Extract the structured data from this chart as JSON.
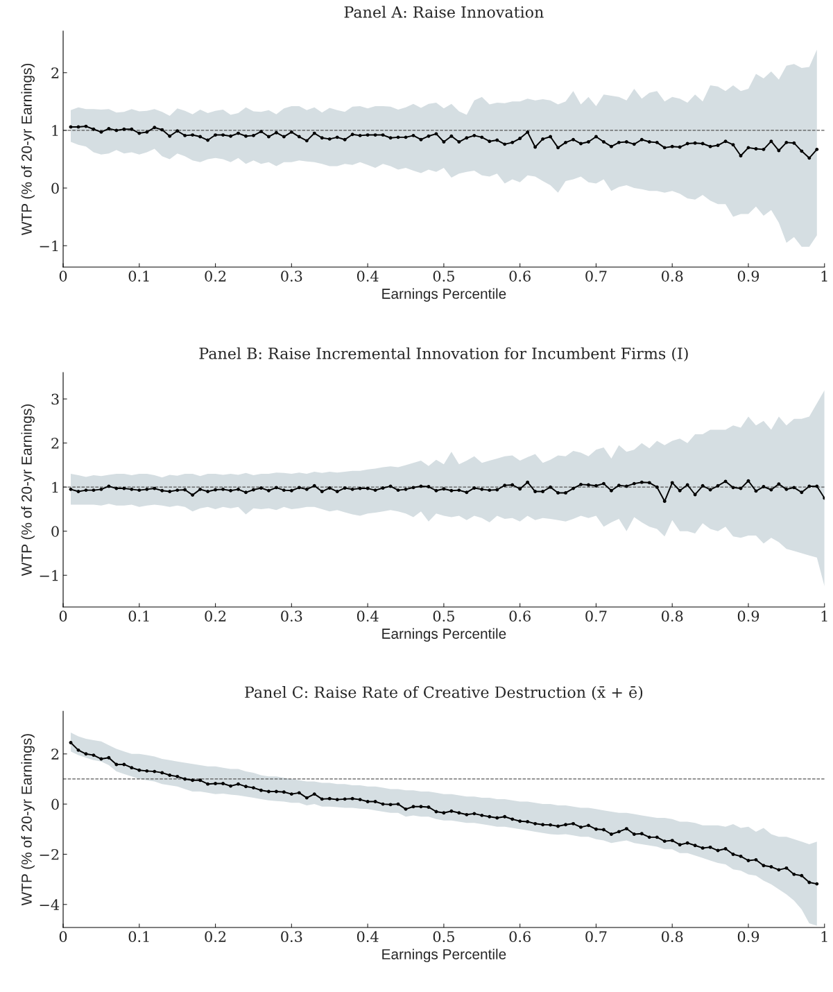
{
  "chart_data": [
    {
      "type": "line",
      "title": "Panel A: Raise Innovation",
      "xlabel": "Earnings Percentile",
      "ylabel": "WTP (% of 20-yr Earnings)",
      "xlim": [
        0,
        1
      ],
      "xticks": [
        0,
        0.1,
        0.2,
        0.3,
        0.4,
        0.5,
        0.6,
        0.7,
        0.8,
        0.9,
        1
      ],
      "ylim": [
        -1.37,
        2.72
      ],
      "yticks": [
        {
          "value": -1,
          "label": "−1"
        },
        0,
        1,
        2
      ],
      "grid": false,
      "marker": "circle",
      "line_style": "solid",
      "ref_lines": [
        {
          "axis": "y",
          "value": 1,
          "color": "#555555",
          "line_style": "dashed"
        }
      ],
      "series": [
        {
          "color": "#000000",
          "x": [
            0.01,
            0.02,
            0.03,
            0.04,
            0.05,
            0.06,
            0.07,
            0.08,
            0.09,
            0.1,
            0.11,
            0.12,
            0.13,
            0.14,
            0.15,
            0.16,
            0.17,
            0.18,
            0.19,
            0.2,
            0.21,
            0.22,
            0.23,
            0.24,
            0.25,
            0.26,
            0.27,
            0.28,
            0.29,
            0.3,
            0.31,
            0.32,
            0.33,
            0.34,
            0.35,
            0.36,
            0.37,
            0.38,
            0.39,
            0.4,
            0.41,
            0.42,
            0.43,
            0.44,
            0.45,
            0.46,
            0.47,
            0.48,
            0.49,
            0.5,
            0.51,
            0.52,
            0.53,
            0.54,
            0.55,
            0.56,
            0.57,
            0.58,
            0.59,
            0.6,
            0.61,
            0.62,
            0.63,
            0.64,
            0.65,
            0.66,
            0.67,
            0.68,
            0.69,
            0.7,
            0.71,
            0.72,
            0.73,
            0.74,
            0.75,
            0.76,
            0.77,
            0.78,
            0.79,
            0.8,
            0.81,
            0.82,
            0.83,
            0.84,
            0.85,
            0.86,
            0.87,
            0.88,
            0.89,
            0.9,
            0.91,
            0.92,
            0.93,
            0.94,
            0.95,
            0.96,
            0.97,
            0.98,
            0.99
          ],
          "values": [
            1.06,
            1.06,
            1.07,
            1.02,
            0.97,
            1.03,
            1.0,
            1.02,
            1.02,
            0.95,
            0.97,
            1.05,
            1.01,
            0.9,
            0.99,
            0.91,
            0.92,
            0.89,
            0.83,
            0.92,
            0.92,
            0.9,
            0.95,
            0.9,
            0.91,
            0.98,
            0.89,
            0.96,
            0.89,
            0.97,
            0.89,
            0.82,
            0.95,
            0.87,
            0.85,
            0.88,
            0.84,
            0.93,
            0.91,
            0.92,
            0.92,
            0.92,
            0.87,
            0.88,
            0.88,
            0.91,
            0.84,
            0.9,
            0.94,
            0.8,
            0.9,
            0.8,
            0.87,
            0.91,
            0.88,
            0.81,
            0.83,
            0.76,
            0.79,
            0.86,
            0.97,
            0.71,
            0.85,
            0.89,
            0.7,
            0.79,
            0.84,
            0.77,
            0.8,
            0.89,
            0.8,
            0.72,
            0.79,
            0.8,
            0.76,
            0.84,
            0.8,
            0.79,
            0.7,
            0.72,
            0.71,
            0.77,
            0.78,
            0.77,
            0.72,
            0.74,
            0.81,
            0.75,
            0.56,
            0.7,
            0.68,
            0.67,
            0.81,
            0.65,
            0.79,
            0.78,
            0.64,
            0.52,
            0.67
          ],
          "upper": [
            1.35,
            1.4,
            1.37,
            1.37,
            1.36,
            1.37,
            1.31,
            1.32,
            1.37,
            1.33,
            1.34,
            1.37,
            1.32,
            1.25,
            1.38,
            1.34,
            1.28,
            1.36,
            1.3,
            1.34,
            1.36,
            1.27,
            1.3,
            1.4,
            1.33,
            1.32,
            1.35,
            1.28,
            1.38,
            1.42,
            1.42,
            1.35,
            1.4,
            1.31,
            1.39,
            1.35,
            1.32,
            1.41,
            1.42,
            1.38,
            1.42,
            1.42,
            1.41,
            1.36,
            1.4,
            1.46,
            1.39,
            1.46,
            1.48,
            1.38,
            1.46,
            1.33,
            1.27,
            1.52,
            1.58,
            1.45,
            1.48,
            1.47,
            1.5,
            1.5,
            1.55,
            1.52,
            1.54,
            1.52,
            1.45,
            1.5,
            1.68,
            1.45,
            1.58,
            1.42,
            1.62,
            1.6,
            1.58,
            1.52,
            1.72,
            1.55,
            1.65,
            1.68,
            1.5,
            1.58,
            1.55,
            1.48,
            1.62,
            1.5,
            1.78,
            1.76,
            1.68,
            1.78,
            1.68,
            1.72,
            1.98,
            1.9,
            2.02,
            1.88,
            2.12,
            2.15,
            2.08,
            2.1,
            2.4
          ],
          "lower": [
            0.8,
            0.75,
            0.72,
            0.62,
            0.58,
            0.6,
            0.66,
            0.6,
            0.62,
            0.58,
            0.62,
            0.68,
            0.55,
            0.5,
            0.6,
            0.55,
            0.48,
            0.45,
            0.5,
            0.52,
            0.5,
            0.45,
            0.52,
            0.42,
            0.48,
            0.42,
            0.45,
            0.38,
            0.45,
            0.45,
            0.48,
            0.46,
            0.45,
            0.42,
            0.38,
            0.38,
            0.42,
            0.4,
            0.45,
            0.4,
            0.35,
            0.42,
            0.38,
            0.32,
            0.35,
            0.3,
            0.26,
            0.32,
            0.28,
            0.35,
            0.18,
            0.25,
            0.28,
            0.3,
            0.22,
            0.2,
            0.25,
            0.08,
            0.15,
            0.1,
            0.22,
            0.2,
            0.12,
            0.05,
            -0.08,
            0.12,
            0.15,
            0.2,
            0.1,
            0.08,
            0.15,
            -0.05,
            0.02,
            0.05,
            0.0,
            -0.02,
            -0.05,
            -0.05,
            -0.08,
            -0.05,
            -0.1,
            -0.18,
            -0.2,
            -0.12,
            -0.22,
            -0.28,
            -0.28,
            -0.5,
            -0.45,
            -0.45,
            -0.32,
            -0.48,
            -0.38,
            -0.6,
            -0.95,
            -0.85,
            -1.02,
            -1.02,
            -0.82
          ]
        }
      ]
    },
    {
      "type": "line",
      "title": "Panel B: Raise Incremental Innovation for Incumbent Firms (I)",
      "xlabel": "Earnings Percentile",
      "ylabel": "WTP (% of 20-yr Earnings)",
      "xlim": [
        0,
        1
      ],
      "xticks": [
        0,
        0.1,
        0.2,
        0.3,
        0.4,
        0.5,
        0.6,
        0.7,
        0.8,
        0.9,
        1
      ],
      "ylim": [
        -1.72,
        3.6
      ],
      "yticks": [
        {
          "value": -1,
          "label": "−1"
        },
        0,
        1,
        2,
        3
      ],
      "grid": false,
      "marker": "circle",
      "line_style": "solid",
      "ref_lines": [
        {
          "axis": "y",
          "value": 1,
          "color": "#555555",
          "line_style": "dashed"
        }
      ],
      "series": [
        {
          "color": "#000000",
          "x": [
            0.01,
            0.02,
            0.03,
            0.04,
            0.05,
            0.06,
            0.07,
            0.08,
            0.09,
            0.1,
            0.11,
            0.12,
            0.13,
            0.14,
            0.15,
            0.16,
            0.17,
            0.18,
            0.19,
            0.2,
            0.21,
            0.22,
            0.23,
            0.24,
            0.25,
            0.26,
            0.27,
            0.28,
            0.29,
            0.3,
            0.31,
            0.32,
            0.33,
            0.34,
            0.35,
            0.36,
            0.37,
            0.38,
            0.39,
            0.4,
            0.41,
            0.42,
            0.43,
            0.44,
            0.45,
            0.46,
            0.47,
            0.48,
            0.49,
            0.5,
            0.51,
            0.52,
            0.53,
            0.54,
            0.55,
            0.56,
            0.57,
            0.58,
            0.59,
            0.6,
            0.61,
            0.62,
            0.63,
            0.64,
            0.65,
            0.66,
            0.67,
            0.68,
            0.69,
            0.7,
            0.71,
            0.72,
            0.73,
            0.74,
            0.75,
            0.76,
            0.77,
            0.78,
            0.79,
            0.8,
            0.81,
            0.82,
            0.83,
            0.84,
            0.85,
            0.86,
            0.87,
            0.88,
            0.89,
            0.9,
            0.91,
            0.92,
            0.93,
            0.94,
            0.95,
            0.96,
            0.97,
            0.98,
            0.99,
            1.0
          ],
          "values": [
            0.95,
            0.9,
            0.93,
            0.93,
            0.95,
            1.02,
            0.97,
            0.97,
            0.95,
            0.93,
            0.95,
            0.97,
            0.92,
            0.9,
            0.93,
            0.94,
            0.82,
            0.95,
            0.9,
            0.94,
            0.95,
            0.92,
            0.95,
            0.88,
            0.94,
            0.98,
            0.92,
            0.99,
            0.93,
            0.92,
            0.99,
            0.95,
            1.03,
            0.9,
            0.98,
            0.9,
            0.98,
            0.95,
            0.97,
            0.97,
            0.93,
            0.98,
            1.02,
            0.93,
            0.95,
            0.99,
            1.02,
            1.01,
            0.92,
            0.96,
            0.92,
            0.93,
            0.88,
            0.98,
            0.95,
            0.93,
            0.94,
            1.04,
            1.05,
            0.96,
            1.11,
            0.9,
            0.9,
            1.0,
            0.87,
            0.87,
            0.97,
            1.06,
            1.05,
            1.03,
            1.08,
            0.92,
            1.04,
            1.02,
            1.08,
            1.11,
            1.1,
            1.0,
            0.68,
            1.1,
            0.92,
            1.05,
            0.83,
            1.03,
            0.94,
            1.03,
            1.13,
            0.99,
            0.97,
            1.14,
            0.91,
            1.01,
            0.94,
            1.07,
            0.95,
            0.99,
            0.88,
            1.02,
            1.02,
            0.75
          ],
          "upper": [
            1.3,
            1.27,
            1.23,
            1.27,
            1.25,
            1.28,
            1.3,
            1.3,
            1.27,
            1.3,
            1.3,
            1.27,
            1.22,
            1.28,
            1.26,
            1.3,
            1.3,
            1.25,
            1.3,
            1.3,
            1.28,
            1.3,
            1.28,
            1.32,
            1.27,
            1.3,
            1.3,
            1.33,
            1.32,
            1.3,
            1.33,
            1.3,
            1.35,
            1.32,
            1.35,
            1.33,
            1.35,
            1.37,
            1.37,
            1.4,
            1.42,
            1.45,
            1.47,
            1.45,
            1.5,
            1.55,
            1.6,
            1.48,
            1.62,
            1.52,
            1.8,
            1.52,
            1.6,
            1.7,
            1.55,
            1.6,
            1.65,
            1.7,
            1.72,
            1.6,
            1.68,
            1.75,
            1.55,
            1.62,
            1.72,
            1.7,
            1.82,
            1.78,
            1.7,
            1.85,
            1.9,
            1.65,
            1.95,
            1.8,
            1.85,
            2.0,
            1.88,
            2.05,
            1.95,
            2.05,
            2.1,
            2.0,
            2.2,
            2.2,
            2.3,
            2.3,
            2.3,
            2.4,
            2.35,
            2.6,
            2.4,
            2.5,
            2.3,
            2.6,
            2.4,
            2.55,
            2.55,
            2.6,
            2.9,
            3.2
          ],
          "lower": [
            0.6,
            0.6,
            0.6,
            0.6,
            0.58,
            0.62,
            0.58,
            0.58,
            0.6,
            0.55,
            0.58,
            0.6,
            0.58,
            0.55,
            0.58,
            0.55,
            0.45,
            0.52,
            0.55,
            0.5,
            0.55,
            0.52,
            0.55,
            0.38,
            0.52,
            0.5,
            0.52,
            0.48,
            0.55,
            0.5,
            0.52,
            0.55,
            0.55,
            0.5,
            0.45,
            0.48,
            0.43,
            0.38,
            0.35,
            0.4,
            0.42,
            0.45,
            0.48,
            0.45,
            0.4,
            0.32,
            0.45,
            0.22,
            0.4,
            0.35,
            0.32,
            0.35,
            0.25,
            0.35,
            0.3,
            0.2,
            0.35,
            0.28,
            0.3,
            0.22,
            0.35,
            0.25,
            0.3,
            0.28,
            0.25,
            0.22,
            0.28,
            0.35,
            0.3,
            0.35,
            0.1,
            0.2,
            0.28,
            0.0,
            0.32,
            0.2,
            0.1,
            0.05,
            -0.12,
            0.25,
            0.0,
            0.0,
            -0.05,
            0.18,
            0.05,
            0.0,
            0.1,
            -0.12,
            -0.15,
            -0.1,
            -0.1,
            -0.28,
            -0.15,
            -0.25,
            -0.4,
            -0.45,
            -0.5,
            -0.55,
            -0.6,
            -1.25
          ]
        }
      ]
    },
    {
      "type": "line",
      "title": "Panel C: Raise Rate of Creative Destruction (x̄ + ē)",
      "xlabel": "Earnings Percentile",
      "ylabel": "WTP (% of 20-yr Earnings)",
      "xlim": [
        0,
        1
      ],
      "xticks": [
        0,
        0.1,
        0.2,
        0.3,
        0.4,
        0.5,
        0.6,
        0.7,
        0.8,
        0.9,
        1
      ],
      "ylim": [
        -4.92,
        3.7
      ],
      "yticks": [
        {
          "value": -4,
          "label": "−4"
        },
        {
          "value": -2,
          "label": "−2"
        },
        0,
        2
      ],
      "grid": false,
      "marker": "circle",
      "line_style": "solid",
      "ref_lines": [
        {
          "axis": "y",
          "value": 1,
          "color": "#555555",
          "line_style": "dashed"
        }
      ],
      "series": [
        {
          "color": "#000000",
          "x": [
            0.01,
            0.02,
            0.03,
            0.04,
            0.05,
            0.06,
            0.07,
            0.08,
            0.09,
            0.1,
            0.11,
            0.12,
            0.13,
            0.14,
            0.15,
            0.16,
            0.17,
            0.18,
            0.19,
            0.2,
            0.21,
            0.22,
            0.23,
            0.24,
            0.25,
            0.26,
            0.27,
            0.28,
            0.29,
            0.3,
            0.31,
            0.32,
            0.33,
            0.34,
            0.35,
            0.36,
            0.37,
            0.38,
            0.39,
            0.4,
            0.41,
            0.42,
            0.43,
            0.44,
            0.45,
            0.46,
            0.47,
            0.48,
            0.49,
            0.5,
            0.51,
            0.52,
            0.53,
            0.54,
            0.55,
            0.56,
            0.57,
            0.58,
            0.59,
            0.6,
            0.61,
            0.62,
            0.63,
            0.64,
            0.65,
            0.66,
            0.67,
            0.68,
            0.69,
            0.7,
            0.71,
            0.72,
            0.73,
            0.74,
            0.75,
            0.76,
            0.77,
            0.78,
            0.79,
            0.8,
            0.81,
            0.82,
            0.83,
            0.84,
            0.85,
            0.86,
            0.87,
            0.88,
            0.89,
            0.9,
            0.91,
            0.92,
            0.93,
            0.94,
            0.95,
            0.96,
            0.97,
            0.98,
            0.99
          ],
          "values": [
            2.45,
            2.15,
            2.0,
            1.95,
            1.8,
            1.85,
            1.58,
            1.58,
            1.45,
            1.35,
            1.32,
            1.3,
            1.25,
            1.15,
            1.1,
            1.0,
            0.95,
            0.95,
            0.8,
            0.82,
            0.82,
            0.72,
            0.8,
            0.7,
            0.65,
            0.55,
            0.5,
            0.5,
            0.48,
            0.4,
            0.45,
            0.25,
            0.4,
            0.2,
            0.22,
            0.18,
            0.2,
            0.22,
            0.18,
            0.1,
            0.1,
            0.0,
            -0.02,
            0.0,
            -0.2,
            -0.1,
            -0.1,
            -0.12,
            -0.3,
            -0.35,
            -0.28,
            -0.35,
            -0.42,
            -0.38,
            -0.45,
            -0.5,
            -0.55,
            -0.5,
            -0.6,
            -0.68,
            -0.7,
            -0.78,
            -0.82,
            -0.83,
            -0.88,
            -0.82,
            -0.78,
            -0.92,
            -0.85,
            -1.0,
            -1.02,
            -1.2,
            -1.1,
            -0.98,
            -1.2,
            -1.18,
            -1.32,
            -1.32,
            -1.48,
            -1.45,
            -1.62,
            -1.55,
            -1.65,
            -1.75,
            -1.72,
            -1.85,
            -1.78,
            -2.0,
            -2.08,
            -2.25,
            -2.22,
            -2.45,
            -2.5,
            -2.62,
            -2.55,
            -2.8,
            -2.85,
            -3.12,
            -3.18
          ],
          "upper": [
            2.85,
            2.7,
            2.6,
            2.55,
            2.5,
            2.35,
            2.2,
            2.1,
            2.0,
            2.0,
            1.95,
            1.9,
            1.8,
            1.75,
            1.7,
            1.65,
            1.6,
            1.55,
            1.5,
            1.5,
            1.45,
            1.4,
            1.4,
            1.3,
            1.25,
            1.15,
            1.1,
            1.1,
            1.05,
            1.0,
            0.95,
            0.9,
            0.9,
            0.85,
            0.85,
            0.8,
            0.8,
            0.75,
            0.75,
            0.7,
            0.7,
            0.65,
            0.6,
            0.6,
            0.55,
            0.55,
            0.5,
            0.5,
            0.45,
            0.4,
            0.4,
            0.35,
            0.3,
            0.3,
            0.25,
            0.25,
            0.2,
            0.2,
            0.15,
            0.1,
            0.1,
            0.05,
            0.0,
            0.0,
            -0.05,
            -0.05,
            -0.1,
            -0.15,
            -0.15,
            -0.2,
            -0.25,
            -0.3,
            -0.35,
            -0.35,
            -0.4,
            -0.45,
            -0.5,
            -0.55,
            -0.55,
            -0.6,
            -0.7,
            -0.7,
            -0.75,
            -0.85,
            -0.85,
            -0.85,
            -0.9,
            -0.8,
            -0.95,
            -0.9,
            -1.1,
            -0.95,
            -1.2,
            -1.3,
            -1.3,
            -1.4,
            -1.5,
            -1.6,
            -1.5
          ],
          "lower": [
            2.1,
            1.95,
            1.85,
            1.75,
            1.7,
            1.55,
            1.3,
            1.2,
            1.1,
            1.0,
            0.95,
            0.9,
            0.8,
            0.75,
            0.7,
            0.6,
            0.5,
            0.5,
            0.45,
            0.4,
            0.42,
            0.38,
            0.35,
            0.3,
            0.25,
            0.2,
            0.15,
            0.12,
            0.1,
            0.05,
            0.05,
            -0.05,
            0.0,
            -0.1,
            -0.1,
            -0.12,
            -0.15,
            -0.15,
            -0.18,
            -0.2,
            -0.25,
            -0.3,
            -0.35,
            -0.35,
            -0.5,
            -0.45,
            -0.5,
            -0.5,
            -0.6,
            -0.65,
            -0.65,
            -0.7,
            -0.75,
            -0.75,
            -0.8,
            -0.85,
            -0.9,
            -0.9,
            -0.95,
            -1.0,
            -1.05,
            -1.1,
            -1.15,
            -1.2,
            -1.22,
            -1.2,
            -1.25,
            -1.3,
            -1.3,
            -1.4,
            -1.45,
            -1.55,
            -1.5,
            -1.45,
            -1.55,
            -1.6,
            -1.65,
            -1.7,
            -1.8,
            -1.8,
            -1.95,
            -1.95,
            -2.05,
            -2.15,
            -2.25,
            -2.35,
            -2.4,
            -2.6,
            -2.65,
            -2.8,
            -2.85,
            -3.05,
            -3.2,
            -3.4,
            -3.6,
            -3.85,
            -4.2,
            -4.75,
            -4.85
          ]
        }
      ]
    }
  ]
}
